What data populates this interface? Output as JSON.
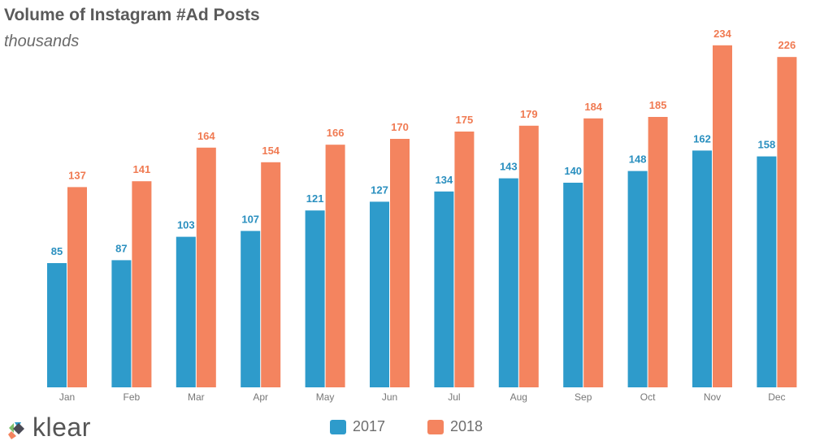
{
  "chart_data": {
    "type": "bar",
    "title": "Volume of Instagram #Ad Posts",
    "subtitle": "thousands",
    "categories": [
      "Jan",
      "Feb",
      "Mar",
      "Apr",
      "May",
      "Jun",
      "Jul",
      "Aug",
      "Sep",
      "Oct",
      "Nov",
      "Dec"
    ],
    "series": [
      {
        "name": "2017",
        "color": "#2e9bcb",
        "label_color": "#2a8fbf",
        "values": [
          85,
          87,
          103,
          107,
          121,
          127,
          134,
          143,
          140,
          148,
          162,
          158
        ]
      },
      {
        "name": "2018",
        "color": "#f4845f",
        "label_color": "#f07a52",
        "values": [
          137,
          141,
          164,
          154,
          166,
          170,
          175,
          179,
          184,
          185,
          234,
          226
        ]
      }
    ],
    "ylim": [
      0,
      240
    ],
    "grid": false,
    "legend": "bottom"
  },
  "logo": {
    "text": "klear"
  }
}
